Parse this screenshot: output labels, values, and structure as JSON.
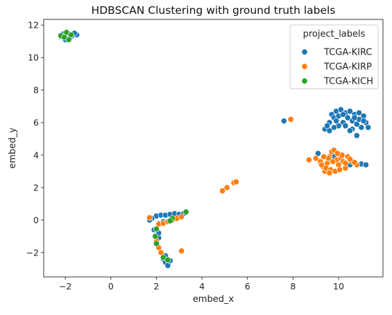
{
  "chart_data": {
    "type": "scatter",
    "title": "HDBSCAN Clustering with ground truth labels",
    "xlabel": "embed_x",
    "ylabel": "embed_y",
    "xlim": [
      -2.95,
      11.95
    ],
    "ylim": [
      -3.5,
      12.35
    ],
    "xticks": [
      -2,
      0,
      2,
      4,
      6,
      8,
      10
    ],
    "yticks": [
      -2,
      0,
      2,
      4,
      6,
      8,
      10,
      12
    ],
    "grid": false,
    "legend": {
      "title": "project_labels",
      "position": "top-right"
    },
    "series": [
      {
        "name": "TCGA-KIRC",
        "color": "#1f77b4",
        "points": [
          [
            -2.1,
            11.45
          ],
          [
            -1.9,
            11.5
          ],
          [
            -1.7,
            11.35
          ],
          [
            -1.5,
            11.4
          ],
          [
            -2.0,
            11.1
          ],
          [
            -1.8,
            11.2
          ],
          [
            -2.2,
            11.3
          ],
          [
            -1.6,
            11.5
          ],
          [
            7.6,
            6.1
          ],
          [
            7.9,
            6.2
          ],
          [
            9.4,
            5.6
          ],
          [
            9.6,
            6.0
          ],
          [
            9.7,
            6.5
          ],
          [
            9.9,
            6.7
          ],
          [
            10.1,
            6.8
          ],
          [
            10.3,
            6.6
          ],
          [
            10.5,
            6.7
          ],
          [
            10.7,
            6.5
          ],
          [
            10.9,
            6.6
          ],
          [
            11.1,
            6.4
          ],
          [
            11.2,
            6.0
          ],
          [
            11.3,
            5.7
          ],
          [
            11.0,
            5.7
          ],
          [
            10.8,
            5.9
          ],
          [
            10.6,
            6.1
          ],
          [
            10.4,
            6.3
          ],
          [
            10.2,
            6.0
          ],
          [
            10.0,
            5.8
          ],
          [
            9.8,
            5.7
          ],
          [
            9.6,
            5.5
          ],
          [
            9.5,
            5.8
          ],
          [
            9.8,
            6.3
          ],
          [
            10.0,
            6.4
          ],
          [
            10.3,
            5.8
          ],
          [
            10.6,
            5.6
          ],
          [
            10.9,
            6.2
          ],
          [
            11.1,
            6.1
          ],
          [
            10.8,
            5.2
          ],
          [
            10.5,
            5.5
          ],
          [
            10.2,
            6.5
          ],
          [
            9.9,
            6.1
          ],
          [
            10.7,
            6.3
          ],
          [
            9.1,
            4.1
          ],
          [
            9.8,
            3.9
          ],
          [
            10.5,
            3.4
          ],
          [
            11.0,
            3.45
          ],
          [
            11.2,
            3.4
          ],
          [
            2.0,
            0.25
          ],
          [
            2.2,
            0.3
          ],
          [
            2.4,
            0.3
          ],
          [
            2.6,
            0.35
          ],
          [
            2.8,
            0.4
          ],
          [
            3.0,
            0.35
          ],
          [
            3.2,
            0.4
          ],
          [
            2.1,
            -0.2
          ],
          [
            2.3,
            -0.1
          ],
          [
            1.9,
            -0.6
          ],
          [
            2.1,
            -1.1
          ],
          [
            2.3,
            -2.4
          ],
          [
            2.4,
            -2.6
          ],
          [
            2.5,
            -2.8
          ],
          [
            2.6,
            -2.5
          ],
          [
            2.4,
            -2.2
          ],
          [
            1.8,
            0.1
          ],
          [
            1.7,
            0.0
          ],
          [
            2.1,
            -0.8
          ]
        ]
      },
      {
        "name": "TCGA-KIRP",
        "color": "#ff7f0e",
        "points": [
          [
            7.9,
            6.2
          ],
          [
            4.9,
            1.8
          ],
          [
            5.1,
            2.0
          ],
          [
            5.4,
            2.3
          ],
          [
            5.5,
            2.35
          ],
          [
            8.7,
            3.7
          ],
          [
            9.0,
            3.8
          ],
          [
            9.2,
            3.6
          ],
          [
            9.3,
            3.3
          ],
          [
            9.4,
            3.0
          ],
          [
            9.5,
            3.5
          ],
          [
            9.6,
            3.9
          ],
          [
            9.7,
            4.2
          ],
          [
            9.8,
            4.3
          ],
          [
            9.9,
            3.7
          ],
          [
            10.0,
            3.4
          ],
          [
            10.1,
            3.8
          ],
          [
            10.2,
            3.6
          ],
          [
            10.3,
            3.2
          ],
          [
            10.4,
            3.9
          ],
          [
            10.6,
            3.6
          ],
          [
            10.8,
            3.4
          ],
          [
            9.45,
            3.2
          ],
          [
            9.65,
            3.1
          ],
          [
            9.85,
            3.0
          ],
          [
            9.55,
            3.8
          ],
          [
            10.05,
            3.1
          ],
          [
            9.75,
            3.6
          ],
          [
            9.35,
            3.9
          ],
          [
            10.15,
            4.0
          ],
          [
            9.95,
            4.1
          ],
          [
            10.3,
            3.5
          ],
          [
            9.25,
            3.4
          ],
          [
            10.5,
            3.75
          ],
          [
            10.7,
            3.55
          ],
          [
            9.6,
            2.9
          ],
          [
            1.7,
            0.15
          ],
          [
            2.1,
            -0.25
          ],
          [
            2.3,
            -0.2
          ],
          [
            2.5,
            -0.1
          ],
          [
            2.7,
            0.0
          ],
          [
            2.9,
            0.1
          ],
          [
            3.1,
            0.2
          ],
          [
            3.1,
            -1.9
          ],
          [
            2.1,
            -1.7
          ],
          [
            2.2,
            -2.0
          ],
          [
            2.0,
            -1.3
          ]
        ]
      },
      {
        "name": "TCGA-KICH",
        "color": "#2ca02c",
        "points": [
          [
            -2.2,
            11.35
          ],
          [
            -1.95,
            11.55
          ],
          [
            -1.75,
            11.4
          ],
          [
            -1.85,
            11.1
          ],
          [
            -2.05,
            11.25
          ],
          [
            2.0,
            -0.55
          ],
          [
            2.0,
            -1.45
          ],
          [
            2.3,
            -2.3
          ],
          [
            2.5,
            -2.45
          ],
          [
            2.7,
            0.1
          ],
          [
            3.3,
            0.5
          ],
          [
            2.6,
            -0.05
          ],
          [
            1.95,
            -1.0
          ]
        ]
      }
    ]
  }
}
